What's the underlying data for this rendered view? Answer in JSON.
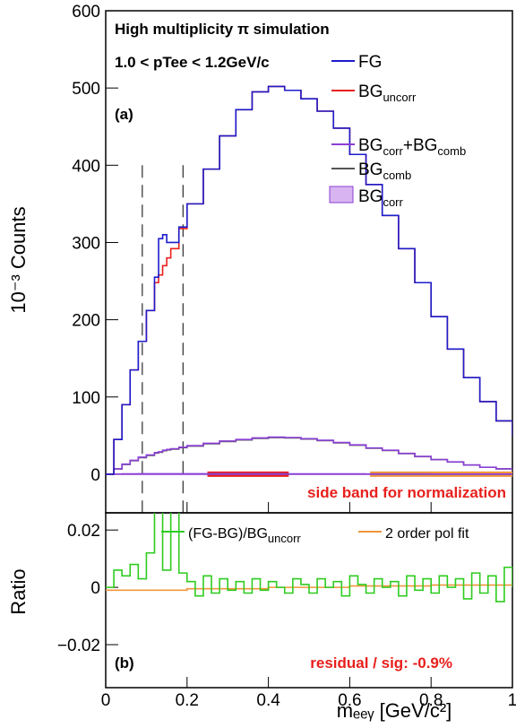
{
  "chart_data": [
    {
      "type": "step",
      "title": "High multiplicity π  simulation",
      "subtitle": "1.0 < pTee < 1.2GeV/c",
      "panel_label": "(a)",
      "annotation": "side band for normalization",
      "y_label": "10⁻³ Counts",
      "xlim": [
        0,
        1
      ],
      "ylim": [
        -50,
        600
      ],
      "xticks": [
        0,
        0.2,
        0.4,
        0.6,
        0.8,
        1
      ],
      "yticks": [
        0,
        100,
        200,
        300,
        400,
        500,
        600
      ],
      "signal_window": [
        0.09,
        0.19
      ],
      "signal_window_top": 400,
      "baseline": 0,
      "side_bands": [
        {
          "range": [
            0.25,
            0.45
          ],
          "color": "#e8201c"
        },
        {
          "range": [
            0.65,
            1
          ],
          "color": "#f0963c"
        }
      ],
      "series": [
        {
          "name": "FG",
          "color": "#1c1ccc",
          "x": [
            0,
            0.02,
            0.04,
            0.06,
            0.08,
            0.1,
            0.12,
            0.13,
            0.14,
            0.15,
            0.16,
            0.18,
            0.2,
            0.24,
            0.28,
            0.32,
            0.36,
            0.4,
            0.44,
            0.48,
            0.52,
            0.56,
            0.6,
            0.64,
            0.68,
            0.72,
            0.76,
            0.8,
            0.84,
            0.88,
            0.92,
            0.96,
            1
          ],
          "values": [
            0,
            45,
            90,
            135,
            172,
            212,
            255,
            305,
            310,
            300,
            300,
            320,
            350,
            395,
            438,
            472,
            495,
            502,
            497,
            486,
            470,
            448,
            414,
            375,
            335,
            292,
            248,
            204,
            162,
            125,
            94,
            69,
            50
          ]
        },
        {
          "name": "BGuncorr",
          "color": "#e8201c",
          "x": [
            0,
            0.02,
            0.04,
            0.06,
            0.08,
            0.1,
            0.12,
            0.13,
            0.14,
            0.15,
            0.16,
            0.18,
            0.2,
            0.24,
            0.28,
            0.32,
            0.36,
            0.4,
            0.44,
            0.48,
            0.52,
            0.56,
            0.6,
            0.64,
            0.68,
            0.72,
            0.76,
            0.8,
            0.84,
            0.88,
            0.92,
            0.96,
            1
          ],
          "values": [
            0,
            45,
            90,
            135,
            172,
            212,
            248,
            258,
            270,
            280,
            292,
            318,
            350,
            395,
            438,
            472,
            495,
            502,
            497,
            486,
            470,
            448,
            414,
            375,
            335,
            292,
            248,
            204,
            162,
            125,
            94,
            69,
            50
          ]
        },
        {
          "name": "BGcorr+BGcomb",
          "color": "#8a3fd6",
          "x": [
            0,
            0.02,
            0.04,
            0.06,
            0.08,
            0.1,
            0.12,
            0.13,
            0.14,
            0.15,
            0.16,
            0.18,
            0.2,
            0.24,
            0.28,
            0.32,
            0.36,
            0.4,
            0.44,
            0.48,
            0.52,
            0.56,
            0.6,
            0.64,
            0.68,
            0.72,
            0.76,
            0.8,
            0.84,
            0.88,
            0.92,
            0.96,
            1
          ],
          "values": [
            0,
            7,
            13,
            18,
            22,
            25,
            28,
            29,
            31,
            32,
            33,
            35,
            37,
            40,
            43,
            45,
            47,
            48,
            47.5,
            46,
            44,
            41,
            38,
            34,
            31,
            27,
            23,
            19,
            16,
            12,
            9,
            7,
            5
          ]
        },
        {
          "name": "BGcomb",
          "color": "#555555",
          "x": [
            0,
            0.02,
            0.04,
            0.06,
            0.08,
            0.1,
            0.12,
            0.13,
            0.14,
            0.15,
            0.16,
            0.18,
            0.2,
            0.24,
            0.28,
            0.32,
            0.36,
            0.4,
            0.44,
            0.48,
            0.52,
            0.56,
            0.6,
            0.64,
            0.68,
            0.72,
            0.76,
            0.8,
            0.84,
            0.88,
            0.92,
            0.96,
            1
          ],
          "values": [
            0,
            6.8,
            12.6,
            17.5,
            21.4,
            24.4,
            27.4,
            28.4,
            30.4,
            31.4,
            32.4,
            34.4,
            36.4,
            39.4,
            42.4,
            44.4,
            46.4,
            47.4,
            47,
            45.5,
            43.5,
            40.6,
            37.6,
            33.7,
            30.7,
            26.7,
            22.7,
            18.8,
            15.8,
            11.8,
            8.9,
            6.9,
            4.9
          ]
        },
        {
          "name": "BGcorr",
          "color": "#d8b4f0",
          "fill": true,
          "x": [
            0,
            0.02,
            0.04,
            0.06,
            0.08,
            0.1,
            0.12,
            0.13,
            0.14,
            0.15,
            0.16,
            0.18,
            0.2,
            0.24,
            0.28,
            0.32,
            0.36,
            0.4,
            0.44,
            0.48,
            0.52,
            0.56,
            0.6,
            0.64,
            0.68,
            0.72,
            0.76,
            0.8,
            0.84,
            0.88,
            0.92,
            0.96,
            1
          ],
          "values": [
            0,
            0.2,
            0.4,
            0.5,
            0.6,
            0.6,
            0.6,
            0.6,
            0.6,
            0.6,
            0.6,
            0.6,
            0.6,
            0.6,
            0.6,
            0.6,
            0.6,
            0.6,
            0.5,
            0.5,
            0.5,
            0.4,
            0.4,
            0.3,
            0.3,
            0.3,
            0.3,
            0.2,
            0.2,
            0.2,
            0.1,
            0.1,
            0.1
          ]
        }
      ]
    },
    {
      "type": "step",
      "panel_label": "(b)",
      "annotation": "residual / sig: -0.9%",
      "x_label": "mₑₑᵧ [GeV/c²]",
      "y_label": "Ratio",
      "xlim": [
        0,
        1
      ],
      "ylim": [
        -0.035,
        0.026
      ],
      "xticks": [
        0,
        0.2,
        0.4,
        0.6,
        0.8,
        1
      ],
      "yticks": [
        {
          "value": -0.02,
          "label": "−0.02"
        },
        0,
        0.02
      ],
      "series": [
        {
          "name": "(FG-BG)/BGuncorr",
          "color": "#2ecc1f",
          "x": [
            0,
            0.02,
            0.04,
            0.06,
            0.08,
            0.1,
            0.12,
            0.14,
            0.16,
            0.18,
            0.2,
            0.22,
            0.24,
            0.26,
            0.28,
            0.3,
            0.32,
            0.34,
            0.36,
            0.38,
            0.4,
            0.42,
            0.44,
            0.46,
            0.48,
            0.5,
            0.52,
            0.54,
            0.56,
            0.58,
            0.6,
            0.62,
            0.64,
            0.66,
            0.68,
            0.7,
            0.72,
            0.74,
            0.76,
            0.78,
            0.8,
            0.82,
            0.84,
            0.86,
            0.88,
            0.9,
            0.92,
            0.94,
            0.96,
            0.98,
            1
          ],
          "values": [
            0,
            0.006,
            0.004,
            0.008,
            0.003,
            0.012,
            0.03,
            0.006,
            0.028,
            0.005,
            0.002,
            -0.003,
            0.004,
            -0.002,
            0.003,
            -0.001,
            0.002,
            -0.002,
            0.003,
            -0.001,
            0.002,
            0,
            -0.002,
            0.003,
            0.001,
            -0.002,
            0.003,
            0,
            0.002,
            -0.003,
            0.004,
            0.001,
            -0.002,
            0.003,
            0,
            0.002,
            -0.003,
            0.004,
            -0.001,
            0.003,
            -0.002,
            0.004,
            0,
            0.003,
            -0.004,
            0.005,
            -0.002,
            0.004,
            -0.005,
            0.007,
            0
          ]
        },
        {
          "name": "2 order pol fit",
          "color": "#f0963c",
          "x": [
            0,
            0.2,
            0.4,
            0.6,
            0.8,
            1
          ],
          "values": [
            -0.001,
            -0.0005,
            0,
            0.0005,
            0.0008,
            0.001
          ]
        }
      ]
    }
  ]
}
